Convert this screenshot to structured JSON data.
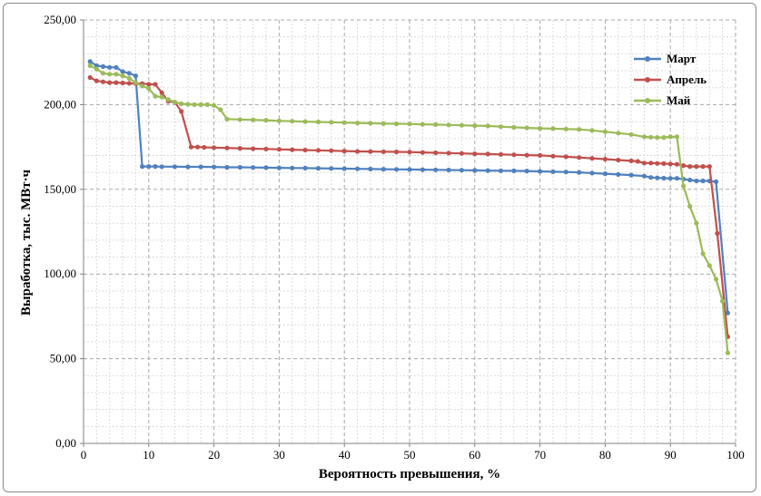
{
  "chart_data": {
    "type": "line",
    "xlabel": "Вероятность превышения, %",
    "ylabel": "Выработка, тыс. МВт·ч",
    "xlim": [
      0,
      100
    ],
    "ylim": [
      0,
      250
    ],
    "x_ticks": [
      "0",
      "10",
      "20",
      "30",
      "40",
      "50",
      "60",
      "70",
      "80",
      "90",
      "100"
    ],
    "y_ticks": [
      "0,00",
      "50,00",
      "100,00",
      "150,00",
      "200,00",
      "250,00"
    ],
    "grid": true,
    "legend_position": "top-right",
    "series": [
      {
        "name": "Март",
        "color": "#4f81bd",
        "points": [
          [
            1.0,
            225.5
          ],
          [
            2.0,
            223.0
          ],
          [
            3.0,
            222.5
          ],
          [
            4.0,
            222.0
          ],
          [
            5.0,
            222.0
          ],
          [
            6.0,
            219.5
          ],
          [
            7.0,
            218.5
          ],
          [
            8.0,
            217.0
          ],
          [
            9.0,
            163.5
          ],
          [
            10.0,
            163.5
          ],
          [
            11.0,
            163.5
          ],
          [
            12.0,
            163.4
          ],
          [
            14.0,
            163.4
          ],
          [
            16.0,
            163.3
          ],
          [
            18.0,
            163.3
          ],
          [
            20.0,
            163.2
          ],
          [
            22.0,
            163.0
          ],
          [
            24.0,
            163.0
          ],
          [
            26.0,
            162.9
          ],
          [
            28.0,
            162.8
          ],
          [
            30.0,
            162.7
          ],
          [
            32.0,
            162.6
          ],
          [
            34.0,
            162.5
          ],
          [
            36.0,
            162.4
          ],
          [
            38.0,
            162.3
          ],
          [
            40.0,
            162.2
          ],
          [
            42.0,
            162.1
          ],
          [
            44.0,
            162.0
          ],
          [
            46.0,
            161.9
          ],
          [
            48.0,
            161.8
          ],
          [
            50.0,
            161.7
          ],
          [
            52.0,
            161.6
          ],
          [
            54.0,
            161.5
          ],
          [
            56.0,
            161.4
          ],
          [
            58.0,
            161.3
          ],
          [
            60.0,
            161.2
          ],
          [
            62.0,
            161.1
          ],
          [
            64.0,
            161.0
          ],
          [
            66.0,
            160.9
          ],
          [
            68.0,
            160.8
          ],
          [
            70.0,
            160.6
          ],
          [
            72.0,
            160.4
          ],
          [
            74.0,
            160.2
          ],
          [
            76.0,
            160.0
          ],
          [
            78.0,
            159.6
          ],
          [
            80.0,
            159.2
          ],
          [
            82.0,
            158.8
          ],
          [
            84.0,
            158.4
          ],
          [
            86.0,
            157.8
          ],
          [
            87.0,
            157.0
          ],
          [
            88.0,
            156.8
          ],
          [
            89.0,
            156.6
          ],
          [
            90.0,
            156.5
          ],
          [
            91.0,
            156.5
          ],
          [
            92.0,
            156.0
          ],
          [
            93.0,
            155.5
          ],
          [
            94.0,
            155.0
          ],
          [
            95.0,
            155.0
          ],
          [
            96.0,
            155.0
          ],
          [
            97.0,
            154.5
          ],
          [
            98.8,
            77.0
          ]
        ]
      },
      {
        "name": "Апрель",
        "color": "#c0504d",
        "points": [
          [
            1.0,
            216.0
          ],
          [
            2.0,
            214.0
          ],
          [
            3.0,
            213.5
          ],
          [
            4.0,
            213.0
          ],
          [
            5.0,
            213.0
          ],
          [
            6.0,
            212.8
          ],
          [
            7.0,
            212.6
          ],
          [
            8.0,
            212.5
          ],
          [
            9.0,
            212.4
          ],
          [
            10.0,
            212.0
          ],
          [
            11.0,
            212.0
          ],
          [
            12.0,
            207.0
          ],
          [
            13.0,
            202.0
          ],
          [
            14.0,
            201.5
          ],
          [
            15.0,
            196.0
          ],
          [
            16.5,
            175.0
          ],
          [
            17.5,
            175.0
          ],
          [
            18.5,
            174.8
          ],
          [
            20.0,
            174.6
          ],
          [
            22.0,
            174.4
          ],
          [
            24.0,
            174.2
          ],
          [
            26.0,
            174.0
          ],
          [
            28.0,
            173.8
          ],
          [
            30.0,
            173.6
          ],
          [
            32.0,
            173.4
          ],
          [
            34.0,
            173.2
          ],
          [
            36.0,
            173.0
          ],
          [
            38.0,
            172.8
          ],
          [
            40.0,
            172.6
          ],
          [
            42.0,
            172.4
          ],
          [
            44.0,
            172.3
          ],
          [
            46.0,
            172.2
          ],
          [
            48.0,
            172.1
          ],
          [
            50.0,
            172.0
          ],
          [
            52.0,
            171.8
          ],
          [
            54.0,
            171.6
          ],
          [
            56.0,
            171.4
          ],
          [
            58.0,
            171.2
          ],
          [
            60.0,
            171.0
          ],
          [
            62.0,
            170.8
          ],
          [
            64.0,
            170.6
          ],
          [
            66.0,
            170.4
          ],
          [
            68.0,
            170.2
          ],
          [
            70.0,
            170.0
          ],
          [
            72.0,
            169.6
          ],
          [
            74.0,
            169.2
          ],
          [
            76.0,
            168.8
          ],
          [
            78.0,
            168.3
          ],
          [
            80.0,
            167.8
          ],
          [
            82.0,
            167.3
          ],
          [
            84.0,
            166.8
          ],
          [
            85.0,
            166.5
          ],
          [
            86.0,
            165.5
          ],
          [
            87.0,
            165.5
          ],
          [
            88.0,
            165.3
          ],
          [
            89.0,
            165.2
          ],
          [
            90.0,
            165.0
          ],
          [
            91.0,
            164.8
          ],
          [
            92.0,
            164.0
          ],
          [
            93.0,
            163.5
          ],
          [
            94.0,
            163.5
          ],
          [
            95.0,
            163.5
          ],
          [
            96.0,
            163.5
          ],
          [
            97.2,
            124.0
          ],
          [
            98.8,
            63.0
          ]
        ]
      },
      {
        "name": "Май",
        "color": "#9bbb59",
        "points": [
          [
            1.0,
            223.0
          ],
          [
            2.0,
            221.0
          ],
          [
            3.0,
            218.5
          ],
          [
            4.0,
            218.0
          ],
          [
            5.0,
            218.0
          ],
          [
            6.0,
            217.0
          ],
          [
            7.0,
            215.5
          ],
          [
            8.0,
            213.0
          ],
          [
            9.0,
            211.0
          ],
          [
            10.0,
            209.5
          ],
          [
            11.0,
            205.0
          ],
          [
            12.0,
            204.5
          ],
          [
            13.0,
            203.0
          ],
          [
            14.0,
            201.5
          ],
          [
            15.0,
            200.5
          ],
          [
            16.0,
            200.2
          ],
          [
            17.0,
            200.0
          ],
          [
            18.0,
            200.0
          ],
          [
            19.0,
            200.0
          ],
          [
            20.0,
            199.5
          ],
          [
            21.0,
            197.0
          ],
          [
            22.0,
            191.5
          ],
          [
            24.0,
            191.2
          ],
          [
            26.0,
            191.0
          ],
          [
            28.0,
            190.8
          ],
          [
            30.0,
            190.4
          ],
          [
            32.0,
            190.2
          ],
          [
            34.0,
            190.0
          ],
          [
            36.0,
            189.8
          ],
          [
            38.0,
            189.6
          ],
          [
            40.0,
            189.4
          ],
          [
            42.0,
            189.2
          ],
          [
            44.0,
            189.0
          ],
          [
            46.0,
            188.8
          ],
          [
            48.0,
            188.7
          ],
          [
            50.0,
            188.6
          ],
          [
            52.0,
            188.4
          ],
          [
            54.0,
            188.2
          ],
          [
            56.0,
            188.0
          ],
          [
            58.0,
            187.8
          ],
          [
            60.0,
            187.6
          ],
          [
            62.0,
            187.4
          ],
          [
            64.0,
            187.0
          ],
          [
            66.0,
            186.6
          ],
          [
            68.0,
            186.3
          ],
          [
            70.0,
            186.0
          ],
          [
            72.0,
            185.8
          ],
          [
            74.0,
            185.6
          ],
          [
            76.0,
            185.4
          ],
          [
            78.0,
            184.8
          ],
          [
            80.0,
            184.0
          ],
          [
            82.0,
            183.2
          ],
          [
            84.0,
            182.4
          ],
          [
            86.0,
            181.0
          ],
          [
            87.0,
            180.8
          ],
          [
            88.0,
            180.6
          ],
          [
            89.0,
            180.6
          ],
          [
            90.0,
            181.0
          ],
          [
            91.0,
            181.0
          ],
          [
            92.0,
            152.0
          ],
          [
            93.0,
            140.0
          ],
          [
            94.0,
            130.0
          ],
          [
            95.0,
            112.0
          ],
          [
            96.0,
            105.0
          ],
          [
            97.0,
            97.0
          ],
          [
            98.0,
            84.0
          ],
          [
            98.8,
            53.5
          ]
        ]
      }
    ]
  }
}
